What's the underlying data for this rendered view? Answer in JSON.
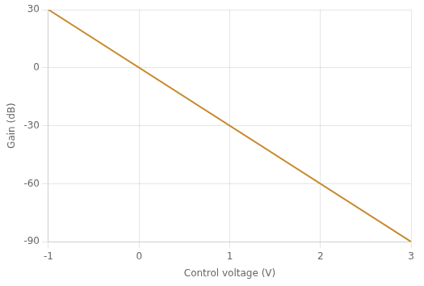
{
  "chart_data": {
    "type": "line",
    "x": [
      -1,
      3
    ],
    "values": [
      30,
      -90
    ],
    "color": "#C8882A",
    "xlabel": "Control voltage (V)",
    "ylabel": "Gain (dB)",
    "xlim": [
      -1,
      3
    ],
    "ylim": [
      -90,
      30
    ],
    "xticks": [
      -1,
      0,
      1,
      2,
      3
    ],
    "yticks": [
      -90,
      -60,
      -30,
      0,
      30
    ],
    "grid": true
  }
}
